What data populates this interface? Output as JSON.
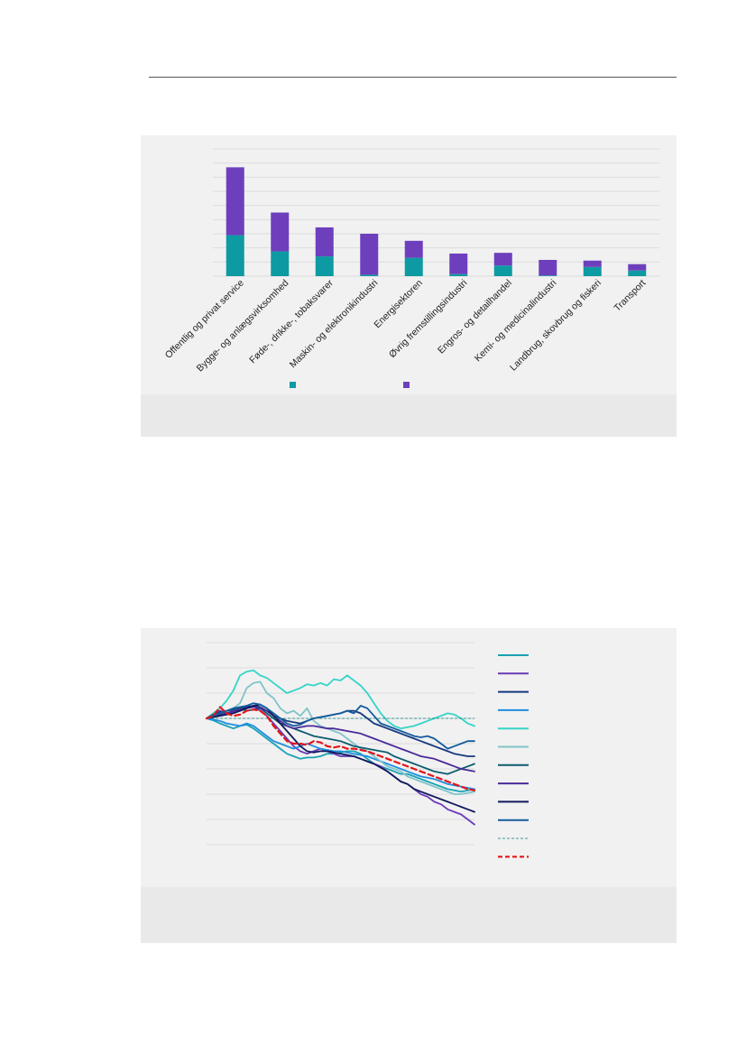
{
  "colors": {
    "teal": "#0d9aa3",
    "purple": "#6e3fbd",
    "grid": "#dcdcdc",
    "red_dashed": "#e4151b"
  },
  "chart_data": [
    {
      "type": "bar",
      "stacked": true,
      "categories": [
        "Offentlig og privat service",
        "Bygge- og anlægsvirksomhed",
        "Føde-, drikke-, tobaksvarer",
        "Maskin- og elektronikindustri",
        "Energisektoren",
        "Øvrig fremstillingsindustri",
        "Engros- og detailhandel",
        "Kemi- og medicinalindustri",
        "Landbrug, skovbrug og fiskeri",
        "Transport"
      ],
      "series": [
        {
          "color": "#0d9aa3",
          "values": [
            5.8,
            3.5,
            2.8,
            0.2,
            2.6,
            0.3,
            1.5,
            0.1,
            1.3,
            0.8
          ]
        },
        {
          "color": "#6e3fbd",
          "values": [
            9.6,
            5.5,
            4.1,
            5.8,
            2.4,
            2.9,
            1.8,
            2.2,
            0.9,
            0.9
          ]
        }
      ],
      "ylim": [
        0,
        18
      ],
      "grid": true,
      "legend": "bottom"
    },
    {
      "type": "line",
      "x_count": 41,
      "ylim": [
        -5,
        3
      ],
      "grid": true,
      "legend": "right",
      "series": [
        {
          "color": "#1aa2b3",
          "style": "solid",
          "values": [
            0,
            -0.08,
            -0.2,
            -0.3,
            -0.4,
            -0.3,
            -0.25,
            -0.4,
            -0.6,
            -0.8,
            -1,
            -1.2,
            -1.4,
            -1.5,
            -1.6,
            -1.55,
            -1.55,
            -1.5,
            -1.4,
            -1.4,
            -1.35,
            -1.3,
            -1.3,
            -1.4,
            -1.6,
            -1.8,
            -1.9,
            -2,
            -2.1,
            -2.2,
            -2.2,
            -2.3,
            -2.4,
            -2.5,
            -2.6,
            -2.7,
            -2.8,
            -2.85,
            -2.9,
            -2.85,
            -2.8
          ]
        },
        {
          "color": "#6a3ab6",
          "style": "solid",
          "values": [
            0,
            0.2,
            0.3,
            0.2,
            0.25,
            0.3,
            0.4,
            0.5,
            0.3,
            0.1,
            -0.2,
            -0.5,
            -0.8,
            -1.1,
            -1.3,
            -1.4,
            -1.3,
            -1.2,
            -1.3,
            -1.4,
            -1.5,
            -1.5,
            -1.5,
            -1.6,
            -1.7,
            -1.8,
            -1.9,
            -2.1,
            -2.3,
            -2.5,
            -2.6,
            -2.8,
            -3,
            -3.1,
            -3.3,
            -3.4,
            -3.6,
            -3.7,
            -3.8,
            -4,
            -4.2
          ]
        },
        {
          "color": "#16387e",
          "style": "solid",
          "values": [
            0,
            0.15,
            0.25,
            0.3,
            0.35,
            0.4,
            0.45,
            0.5,
            0.45,
            0.3,
            0.1,
            0,
            -0.1,
            -0.15,
            -0.2,
            -0.1,
            0,
            0.05,
            0.1,
            0.15,
            0.2,
            0.3,
            0.3,
            0.2,
            0,
            -0.2,
            -0.3,
            -0.4,
            -0.5,
            -0.6,
            -0.7,
            -0.8,
            -0.9,
            -1,
            -1.1,
            -1.2,
            -1.3,
            -1.4,
            -1.45,
            -1.5,
            -1.5
          ]
        },
        {
          "color": "#1f8ee0",
          "style": "solid",
          "values": [
            0,
            -0.05,
            -0.1,
            -0.2,
            -0.25,
            -0.3,
            -0.2,
            -0.3,
            -0.5,
            -0.7,
            -0.9,
            -1,
            -1.1,
            -1.2,
            -1.1,
            -1,
            -1.1,
            -1.2,
            -1.25,
            -1.3,
            -1.3,
            -1.35,
            -1.4,
            -1.45,
            -1.5,
            -1.6,
            -1.7,
            -1.8,
            -1.9,
            -2,
            -2.1,
            -2.2,
            -2.3,
            -2.35,
            -2.4,
            -2.5,
            -2.6,
            -2.65,
            -2.7,
            -2.75,
            -2.8
          ]
        },
        {
          "color": "#35d4c8",
          "style": "solid",
          "values": [
            0,
            0.2,
            0.4,
            0.7,
            1.1,
            1.7,
            1.85,
            1.9,
            1.7,
            1.6,
            1.4,
            1.2,
            1,
            1.1,
            1.2,
            1.35,
            1.3,
            1.4,
            1.3,
            1.55,
            1.5,
            1.7,
            1.5,
            1.3,
            1,
            0.6,
            0.2,
            -0.1,
            -0.3,
            -0.4,
            -0.35,
            -0.3,
            -0.2,
            -0.1,
            0,
            0.1,
            0.2,
            0.15,
            0,
            -0.2,
            -0.3
          ]
        },
        {
          "color": "#7fc4c9",
          "style": "solid",
          "values": [
            0,
            0.1,
            0.2,
            0.3,
            0.4,
            0.6,
            1.2,
            1.4,
            1.45,
            1,
            0.8,
            0.4,
            0.2,
            0.3,
            0.1,
            0.4,
            -0.1,
            -0.3,
            -0.4,
            -0.5,
            -0.6,
            -0.8,
            -1,
            -1.2,
            -1.3,
            -1.5,
            -1.7,
            -1.9,
            -2,
            -2.1,
            -2.3,
            -2.4,
            -2.5,
            -2.6,
            -2.7,
            -2.8,
            -2.9,
            -3,
            -3,
            -2.95,
            -2.9
          ]
        },
        {
          "color": "#0c5c6e",
          "style": "solid",
          "values": [
            0,
            0.15,
            0.2,
            0.3,
            0.35,
            0.4,
            0.3,
            0.35,
            0.4,
            0.2,
            0,
            -0.2,
            -0.3,
            -0.4,
            -0.5,
            -0.6,
            -0.7,
            -0.75,
            -0.8,
            -0.85,
            -0.9,
            -1,
            -1.1,
            -1.15,
            -1.2,
            -1.25,
            -1.3,
            -1.35,
            -1.5,
            -1.6,
            -1.7,
            -1.8,
            -1.9,
            -2,
            -2.1,
            -2.15,
            -2.2,
            -2.1,
            -2,
            -1.9,
            -1.8
          ]
        },
        {
          "color": "#4a2a9a",
          "style": "solid",
          "values": [
            0,
            0.1,
            0.15,
            0.2,
            0.3,
            0.35,
            0.4,
            0.45,
            0.4,
            0.3,
            0.1,
            -0.1,
            -0.3,
            -0.4,
            -0.35,
            -0.3,
            -0.3,
            -0.35,
            -0.4,
            -0.4,
            -0.45,
            -0.5,
            -0.55,
            -0.6,
            -0.7,
            -0.8,
            -0.9,
            -1,
            -1.1,
            -1.2,
            -1.3,
            -1.4,
            -1.5,
            -1.55,
            -1.6,
            -1.7,
            -1.8,
            -1.9,
            -2,
            -2.05,
            -2.1
          ]
        },
        {
          "color": "#0f1a5c",
          "style": "solid",
          "values": [
            0,
            0.05,
            0.1,
            0.15,
            0.2,
            0.3,
            0.4,
            0.5,
            0.55,
            0.4,
            0.1,
            -0.2,
            -0.5,
            -0.8,
            -1.1,
            -1.3,
            -1.35,
            -1.3,
            -1.3,
            -1.35,
            -1.4,
            -1.45,
            -1.5,
            -1.6,
            -1.7,
            -1.8,
            -1.95,
            -2.1,
            -2.3,
            -2.5,
            -2.6,
            -2.8,
            -2.9,
            -3,
            -3.1,
            -3.2,
            -3.3,
            -3.4,
            -3.5,
            -3.6,
            -3.7
          ]
        },
        {
          "color": "#135c9e",
          "style": "solid",
          "values": [
            0,
            0.1,
            0.2,
            0.3,
            0.4,
            0.45,
            0.5,
            0.6,
            0.55,
            0.4,
            0.2,
            0,
            -0.2,
            -0.3,
            -0.25,
            -0.1,
            0,
            0.05,
            0.1,
            0.15,
            0.2,
            0.3,
            0.2,
            0.5,
            0.4,
            0.1,
            -0.2,
            -0.3,
            -0.4,
            -0.5,
            -0.6,
            -0.7,
            -0.75,
            -0.7,
            -0.8,
            -1,
            -1.2,
            -1.1,
            -1,
            -0.9,
            -0.9
          ]
        },
        {
          "color": "#0b7a7a",
          "style": "dashed-thin",
          "values": [
            0,
            0,
            0,
            0,
            0,
            0,
            0,
            0,
            0,
            0,
            0,
            0,
            0,
            0,
            0,
            0,
            0,
            0,
            0,
            0,
            0,
            0,
            0,
            0,
            0,
            0,
            0,
            0,
            0,
            0,
            0,
            0,
            0,
            0,
            0,
            0,
            0,
            0,
            0,
            0,
            0
          ]
        },
        {
          "color": "#e4151b",
          "style": "dashed",
          "values": [
            0,
            0.1,
            0.45,
            0.2,
            0.1,
            0.15,
            0.3,
            0.35,
            0.3,
            0.1,
            -0.3,
            -0.6,
            -0.9,
            -1,
            -1,
            -1.05,
            -0.9,
            -0.95,
            -1.1,
            -1.15,
            -1.1,
            -1.2,
            -1.2,
            -1.25,
            -1.3,
            -1.4,
            -1.5,
            -1.6,
            -1.7,
            -1.8,
            -1.9,
            -2,
            -2.1,
            -2.2,
            -2.3,
            -2.4,
            -2.5,
            -2.6,
            -2.7,
            -2.8,
            -2.85
          ]
        }
      ]
    }
  ]
}
